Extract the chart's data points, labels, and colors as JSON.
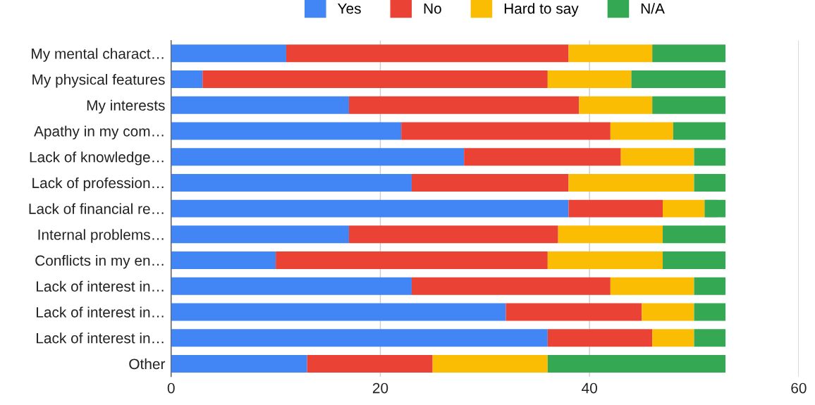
{
  "chart_data": {
    "type": "bar",
    "orientation": "horizontal",
    "stacked": true,
    "categories": [
      "My mental charact…",
      "My physical features",
      "My interests",
      "Apathy in my com…",
      "Lack of knowledge…",
      "Lack of profession…",
      "Lack of financial re…",
      "Internal problems…",
      "Conflicts in my en…",
      "Lack of interest in…",
      "Lack of interest in…",
      "Lack of interest in…",
      "Other"
    ],
    "series": [
      {
        "name": "Yes",
        "color": "#4285f4",
        "values": [
          11,
          3,
          17,
          22,
          28,
          23,
          38,
          17,
          10,
          23,
          32,
          36,
          13
        ]
      },
      {
        "name": "No",
        "color": "#ea4335",
        "values": [
          27,
          33,
          22,
          20,
          15,
          15,
          9,
          20,
          26,
          19,
          13,
          10,
          12
        ]
      },
      {
        "name": "Hard to say",
        "color": "#fbbc04",
        "values": [
          8,
          8,
          7,
          6,
          7,
          12,
          4,
          10,
          11,
          8,
          5,
          4,
          11
        ]
      },
      {
        "name": "N/A",
        "color": "#34a853",
        "values": [
          7,
          9,
          7,
          5,
          3,
          3,
          2,
          6,
          6,
          3,
          3,
          3,
          17
        ]
      }
    ],
    "xlim": [
      0,
      60
    ],
    "xticks": [
      0,
      20,
      40,
      60
    ],
    "grid": "x",
    "legend": "top"
  }
}
